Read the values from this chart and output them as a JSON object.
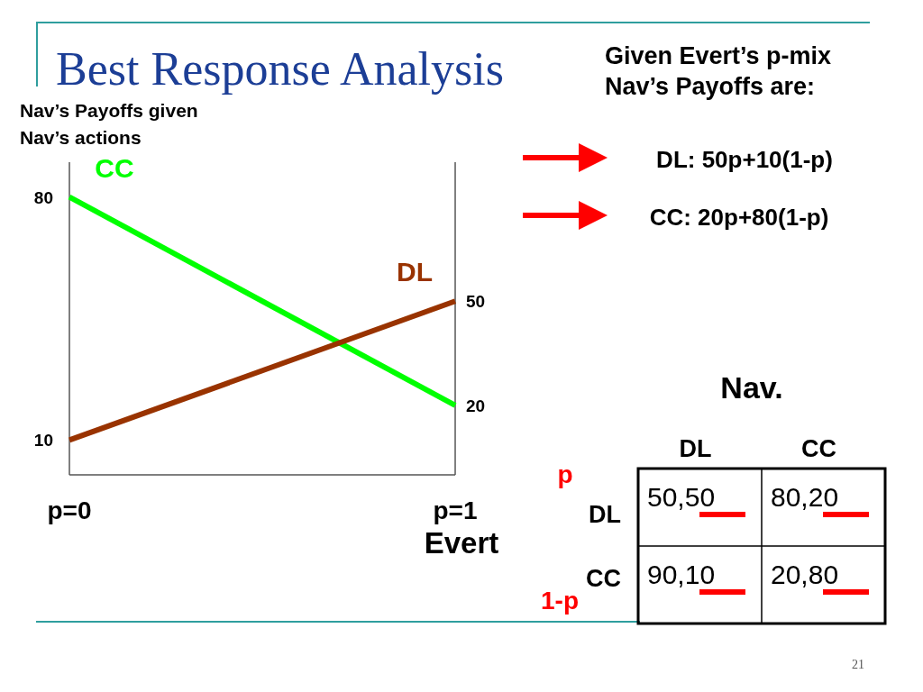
{
  "chart_data": [
    {
      "type": "line",
      "title": "Best Response Analysis",
      "ylabel": "Nav’s Payoffs given Nav’s actions",
      "xlabel": "Evert",
      "x": [
        0,
        1
      ],
      "xlim": [
        0,
        1
      ],
      "xticks": [
        {
          "value": 0,
          "label": "p=0"
        },
        {
          "value": 1,
          "label": "p=1"
        }
      ],
      "ylim": [
        0,
        90
      ],
      "yticks": [
        10,
        80
      ],
      "y2lim": [
        0,
        90
      ],
      "y2ticks": [
        20,
        50
      ],
      "series": [
        {
          "name": "CC",
          "color": "#00ff00",
          "values": [
            80,
            20
          ]
        },
        {
          "name": "DL",
          "color": "#993300",
          "values": [
            10,
            50
          ]
        }
      ]
    },
    {
      "type": "other",
      "title": "Given Evert’s p-mix Nav’s Payoffs are:",
      "annotations": [
        "DL: 50p+10(1-p)",
        "CC: 20p+80(1-p)",
        "Nav.",
        "p",
        "1-p",
        "21"
      ],
      "categories": [
        "DL",
        "CC"
      ],
      "y_categories": [
        "DL",
        "CC"
      ],
      "cell_labels": [
        [
          "50,50",
          "80,20"
        ],
        [
          "90,10",
          "20,80"
        ]
      ]
    }
  ]
}
